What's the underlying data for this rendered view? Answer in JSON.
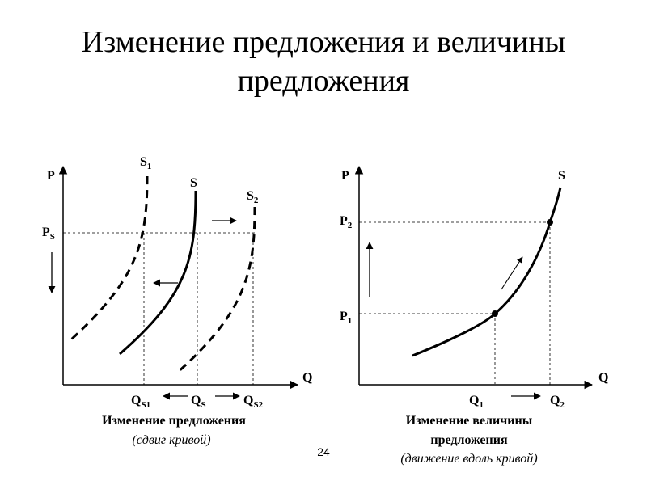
{
  "slide": {
    "title_line1": "Изменение предложения и величины",
    "title_line2": "предложения",
    "page_number": "24"
  },
  "left_diagram": {
    "axis_y": "P",
    "axis_x": "Q",
    "price_label": "P",
    "price_sub": "S",
    "curves": [
      {
        "label": "S",
        "sub": "1",
        "style": "dashed"
      },
      {
        "label": "S",
        "sub": "",
        "style": "solid"
      },
      {
        "label": "S",
        "sub": "2",
        "style": "dashed"
      }
    ],
    "q_labels": [
      {
        "main": "Q",
        "sub": "S1"
      },
      {
        "main": "Q",
        "sub": "S"
      },
      {
        "main": "Q",
        "sub": "S2"
      }
    ],
    "caption": "Изменение предложения",
    "caption_note": "(сдвиг кривой)"
  },
  "right_diagram": {
    "axis_y": "P",
    "axis_x": "Q",
    "curve_label": "S",
    "p_labels": [
      {
        "main": "P",
        "sub": "2"
      },
      {
        "main": "P",
        "sub": "1"
      }
    ],
    "q_labels": [
      {
        "main": "Q",
        "sub": "1"
      },
      {
        "main": "Q",
        "sub": "2"
      }
    ],
    "caption_line1": "Изменение величины",
    "caption_line2": "предложения",
    "caption_note": "(движение вдоль кривой)"
  }
}
